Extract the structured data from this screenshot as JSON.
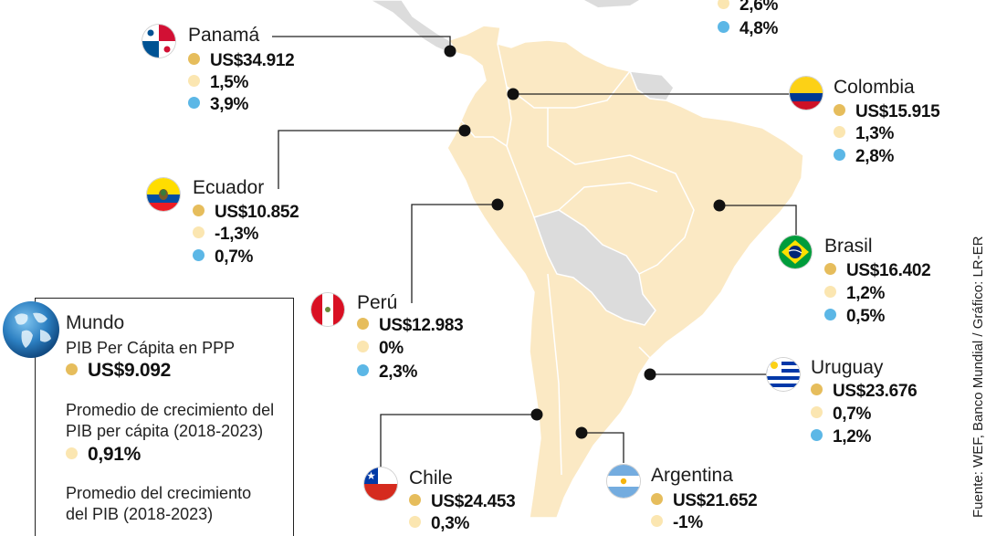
{
  "colors": {
    "land_la": "#fbe9c4",
    "land_other": "#dcdcdc",
    "border": "#ffffff",
    "pib": "#e6bd5c",
    "crec": "#fbe6b1",
    "tasa": "#5cb7e6",
    "line": "#222222"
  },
  "top_partial": {
    "crecimiento": "2,6%",
    "tasa": "4,8%"
  },
  "countries": {
    "panama": {
      "name": "Panamá",
      "pib": "US$34.912",
      "crecimiento": "1,5%",
      "tasa": "3,9%"
    },
    "colombia": {
      "name": "Colombia",
      "pib": "US$15.915",
      "crecimiento": "1,3%",
      "tasa": "2,8%"
    },
    "ecuador": {
      "name": "Ecuador",
      "pib": "US$10.852",
      "crecimiento": "-1,3%",
      "tasa": "0,7%"
    },
    "brasil": {
      "name": "Brasil",
      "pib": "US$16.402",
      "crecimiento": "1,2%",
      "tasa": "0,5%"
    },
    "peru": {
      "name": "Perú",
      "pib": "US$12.983",
      "crecimiento": "0%",
      "tasa": "2,3%"
    },
    "uruguay": {
      "name": "Uruguay",
      "pib": "US$23.676",
      "crecimiento": "0,7%",
      "tasa": "1,2%"
    },
    "chile": {
      "name": "Chile",
      "pib": "US$24.453",
      "crecimiento": "0,3%"
    },
    "argentina": {
      "name": "Argentina",
      "pib": "US$21.652",
      "crecimiento": "-1%"
    }
  },
  "world": {
    "title": "Mundo",
    "pib_label": "PIB Per Cápita en PPP",
    "pib_value": "US$9.092",
    "crec_label_1": "Promedio de crecimiento del",
    "crec_label_2": "PIB per cápita (2018-2023)",
    "crec_value": "0,91%",
    "tasa_label_1": "Promedio del crecimiento",
    "tasa_label_2": "del PIB (2018-2023)"
  },
  "source": "Fuente: WEF, Banco Mundial / Gráfico: LR-ER",
  "icons": [
    "globe-icon",
    "flag-panama-icon",
    "flag-colombia-icon",
    "flag-ecuador-icon",
    "flag-brasil-icon",
    "flag-peru-icon",
    "flag-uruguay-icon",
    "flag-chile-icon",
    "flag-argentina-icon"
  ]
}
